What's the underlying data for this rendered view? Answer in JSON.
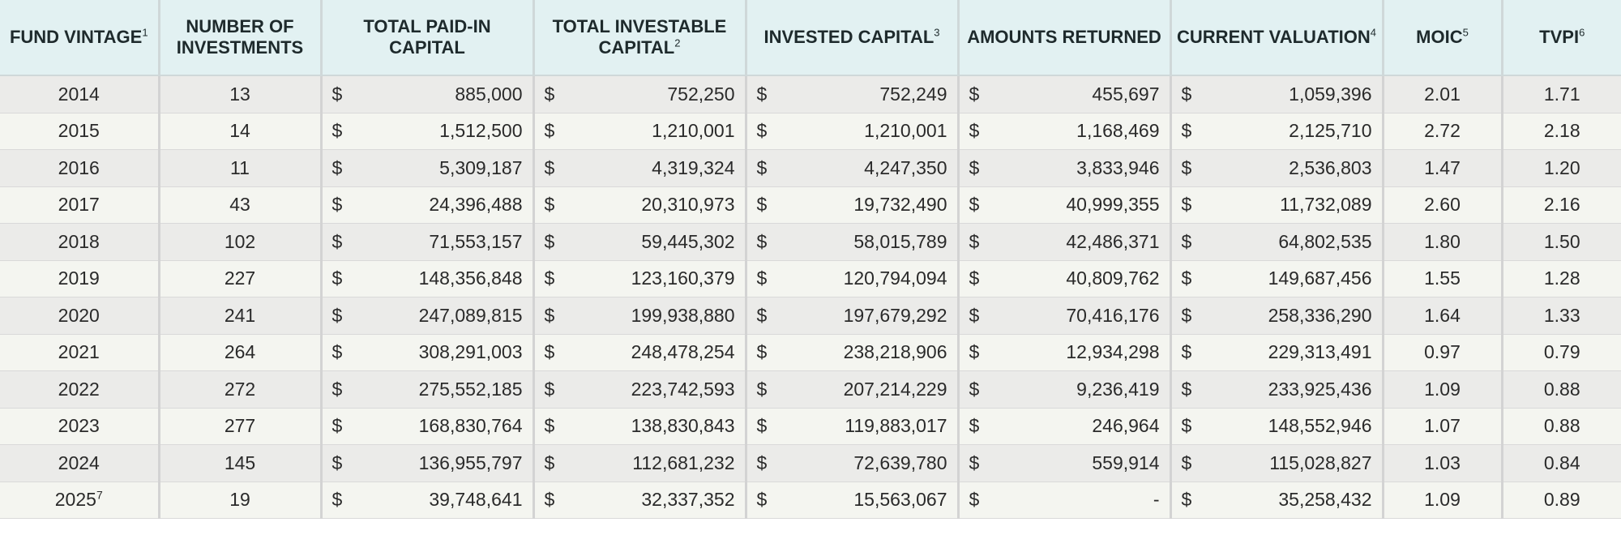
{
  "headers": [
    {
      "label": "FUND VINTAGE",
      "sup": "1"
    },
    {
      "label": "NUMBER OF INVESTMENTS",
      "sup": ""
    },
    {
      "label": "TOTAL PAID-IN CAPITAL",
      "sup": ""
    },
    {
      "label": "TOTAL INVESTABLE CAPITAL",
      "sup": "2"
    },
    {
      "label": "INVESTED CAPITAL",
      "sup": "3"
    },
    {
      "label": "AMOUNTS RETURNED",
      "sup": ""
    },
    {
      "label": "CURRENT VALUATION",
      "sup": "4"
    },
    {
      "label": "MOIC",
      "sup": "5"
    },
    {
      "label": "TVPI",
      "sup": "6"
    }
  ],
  "currency_symbol": "$",
  "rows": [
    {
      "vintage": "2014",
      "vintage_sup": "",
      "investments": "13",
      "paid_in": "885,000",
      "investable": "752,250",
      "invested": "752,249",
      "returned": "455,697",
      "valuation": "1,059,396",
      "moic": "2.01",
      "tvpi": "1.71"
    },
    {
      "vintage": "2015",
      "vintage_sup": "",
      "investments": "14",
      "paid_in": "1,512,500",
      "investable": "1,210,001",
      "invested": "1,210,001",
      "returned": "1,168,469",
      "valuation": "2,125,710",
      "moic": "2.72",
      "tvpi": "2.18"
    },
    {
      "vintage": "2016",
      "vintage_sup": "",
      "investments": "11",
      "paid_in": "5,309,187",
      "investable": "4,319,324",
      "invested": "4,247,350",
      "returned": "3,833,946",
      "valuation": "2,536,803",
      "moic": "1.47",
      "tvpi": "1.20"
    },
    {
      "vintage": "2017",
      "vintage_sup": "",
      "investments": "43",
      "paid_in": "24,396,488",
      "investable": "20,310,973",
      "invested": "19,732,490",
      "returned": "40,999,355",
      "valuation": "11,732,089",
      "moic": "2.60",
      "tvpi": "2.16"
    },
    {
      "vintage": "2018",
      "vintage_sup": "",
      "investments": "102",
      "paid_in": "71,553,157",
      "investable": "59,445,302",
      "invested": "58,015,789",
      "returned": "42,486,371",
      "valuation": "64,802,535",
      "moic": "1.80",
      "tvpi": "1.50"
    },
    {
      "vintage": "2019",
      "vintage_sup": "",
      "investments": "227",
      "paid_in": "148,356,848",
      "investable": "123,160,379",
      "invested": "120,794,094",
      "returned": "40,809,762",
      "valuation": "149,687,456",
      "moic": "1.55",
      "tvpi": "1.28"
    },
    {
      "vintage": "2020",
      "vintage_sup": "",
      "investments": "241",
      "paid_in": "247,089,815",
      "investable": "199,938,880",
      "invested": "197,679,292",
      "returned": "70,416,176",
      "valuation": "258,336,290",
      "moic": "1.64",
      "tvpi": "1.33"
    },
    {
      "vintage": "2021",
      "vintage_sup": "",
      "investments": "264",
      "paid_in": "308,291,003",
      "investable": "248,478,254",
      "invested": "238,218,906",
      "returned": "12,934,298",
      "valuation": "229,313,491",
      "moic": "0.97",
      "tvpi": "0.79"
    },
    {
      "vintage": "2022",
      "vintage_sup": "",
      "investments": "272",
      "paid_in": "275,552,185",
      "investable": "223,742,593",
      "invested": "207,214,229",
      "returned": "9,236,419",
      "valuation": "233,925,436",
      "moic": "1.09",
      "tvpi": "0.88"
    },
    {
      "vintage": "2023",
      "vintage_sup": "",
      "investments": "277",
      "paid_in": "168,830,764",
      "investable": "138,830,843",
      "invested": "119,883,017",
      "returned": "246,964",
      "valuation": "148,552,946",
      "moic": "1.07",
      "tvpi": "0.88"
    },
    {
      "vintage": "2024",
      "vintage_sup": "",
      "investments": "145",
      "paid_in": "136,955,797",
      "investable": "112,681,232",
      "invested": "72,639,780",
      "returned": "559,914",
      "valuation": "115,028,827",
      "moic": "1.03",
      "tvpi": "0.84"
    },
    {
      "vintage": "2025",
      "vintage_sup": "7",
      "investments": "19",
      "paid_in": "39,748,641",
      "investable": "32,337,352",
      "invested": "15,563,067",
      "returned": "-",
      "valuation": "35,258,432",
      "moic": "1.09",
      "tvpi": "0.89"
    }
  ]
}
